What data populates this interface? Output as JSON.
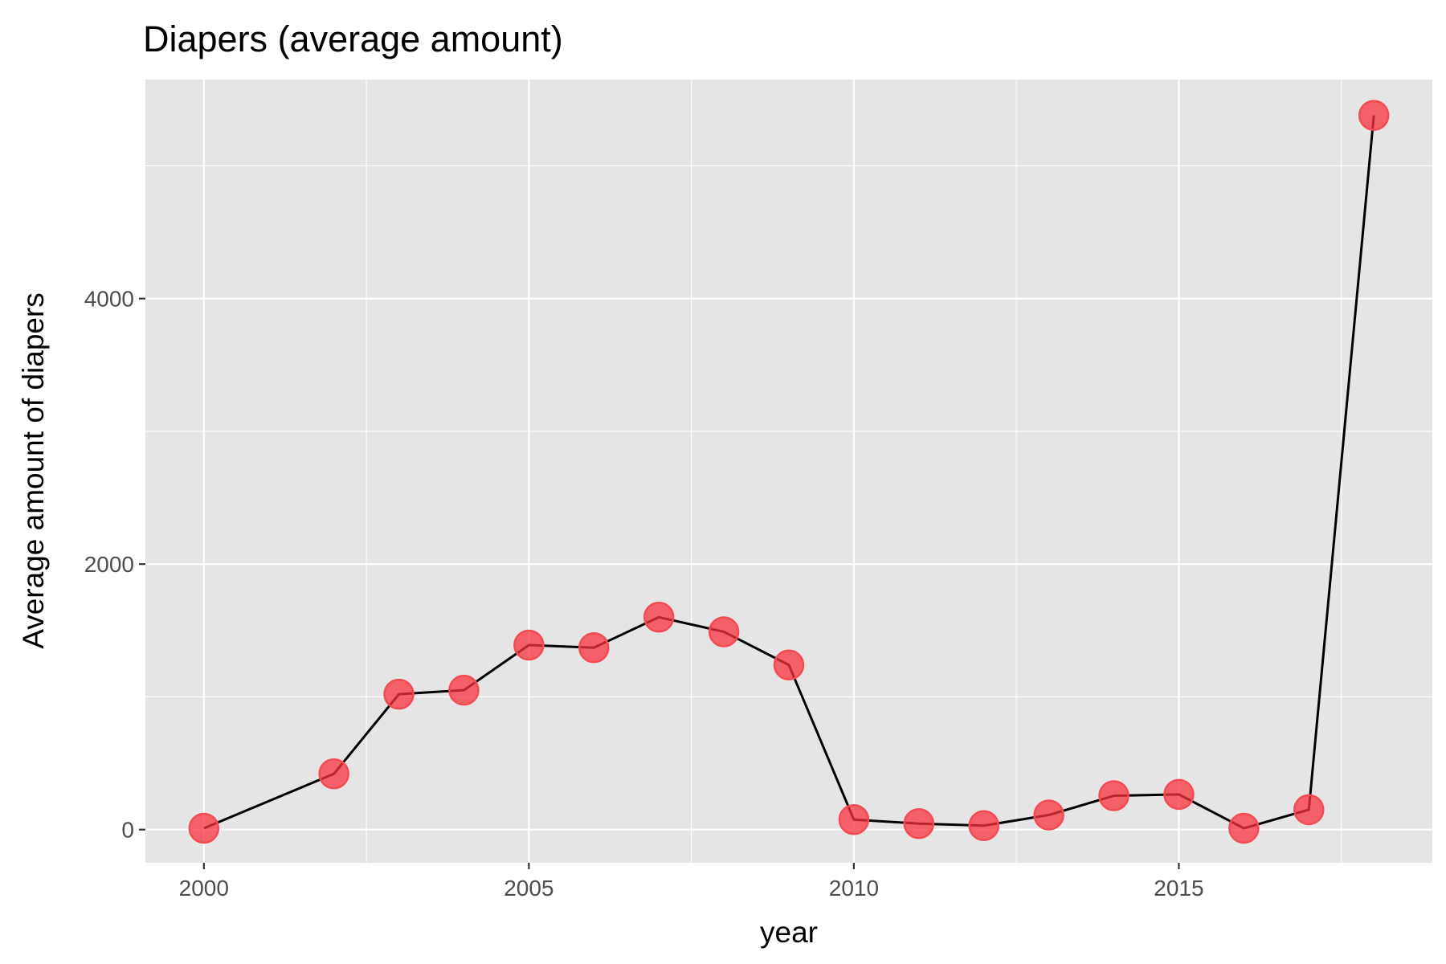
{
  "chart_data": {
    "type": "line",
    "title": "Diapers (average amount)",
    "xlabel": "year",
    "ylabel": "Average amount of diapers",
    "x": [
      2000,
      2002,
      2003,
      2004,
      2005,
      2006,
      2007,
      2008,
      2009,
      2010,
      2011,
      2012,
      2013,
      2014,
      2015,
      2016,
      2017,
      2018
    ],
    "values": [
      10,
      420,
      1020,
      1050,
      1390,
      1370,
      1600,
      1490,
      1240,
      75,
      45,
      30,
      110,
      255,
      265,
      10,
      150,
      5380
    ],
    "xlim": [
      1999.1,
      2018.9
    ],
    "ylim": [
      -250,
      5650
    ],
    "x_ticks": [
      2000,
      2005,
      2010,
      2015
    ],
    "x_tick_labels": [
      "2000",
      "2005",
      "2010",
      "2015"
    ],
    "x_minor_ticks": [
      2002.5,
      2007.5,
      2012.5,
      2017.5
    ],
    "y_ticks": [
      0,
      2000,
      4000
    ],
    "y_tick_labels": [
      "0",
      "2000",
      "4000"
    ],
    "y_minor_ticks": [
      1000,
      3000,
      5000
    ],
    "grid": true,
    "legend": "none",
    "colors": {
      "point_fill": "#f8333d",
      "point_stroke": "#f44b52",
      "line": "#000000",
      "panel": "#e5e5e5"
    }
  }
}
